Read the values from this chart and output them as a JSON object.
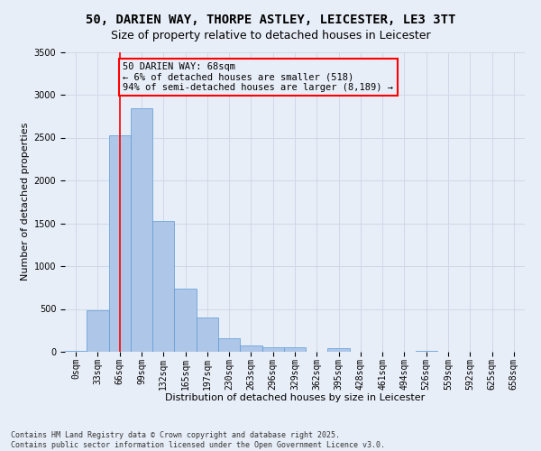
{
  "title_line1": "50, DARIEN WAY, THORPE ASTLEY, LEICESTER, LE3 3TT",
  "title_line2": "Size of property relative to detached houses in Leicester",
  "xlabel": "Distribution of detached houses by size in Leicester",
  "ylabel": "Number of detached properties",
  "bar_categories": [
    "0sqm",
    "33sqm",
    "66sqm",
    "99sqm",
    "132sqm",
    "165sqm",
    "197sqm",
    "230sqm",
    "263sqm",
    "296sqm",
    "329sqm",
    "362sqm",
    "395sqm",
    "428sqm",
    "461sqm",
    "494sqm",
    "526sqm",
    "559sqm",
    "592sqm",
    "625sqm",
    "658sqm"
  ],
  "bar_values": [
    15,
    480,
    2530,
    2840,
    1530,
    740,
    395,
    155,
    75,
    55,
    50,
    0,
    40,
    0,
    0,
    0,
    15,
    0,
    0,
    0,
    0
  ],
  "bar_color": "#aec6e8",
  "bar_edgecolor": "#5b9bd5",
  "grid_color": "#d0d8e8",
  "background_color": "#e8eef8",
  "annotation_text": "50 DARIEN WAY: 68sqm\n← 6% of detached houses are smaller (518)\n94% of semi-detached houses are larger (8,189) →",
  "annotation_box_edgecolor": "red",
  "vline_color": "red",
  "ylim": [
    0,
    3500
  ],
  "yticks": [
    0,
    500,
    1000,
    1500,
    2000,
    2500,
    3000,
    3500
  ],
  "footnote": "Contains HM Land Registry data © Crown copyright and database right 2025.\nContains public sector information licensed under the Open Government Licence v3.0.",
  "title_fontsize": 10,
  "subtitle_fontsize": 9,
  "axis_label_fontsize": 8,
  "tick_fontsize": 7,
  "annotation_fontsize": 7.5,
  "footnote_fontsize": 6
}
